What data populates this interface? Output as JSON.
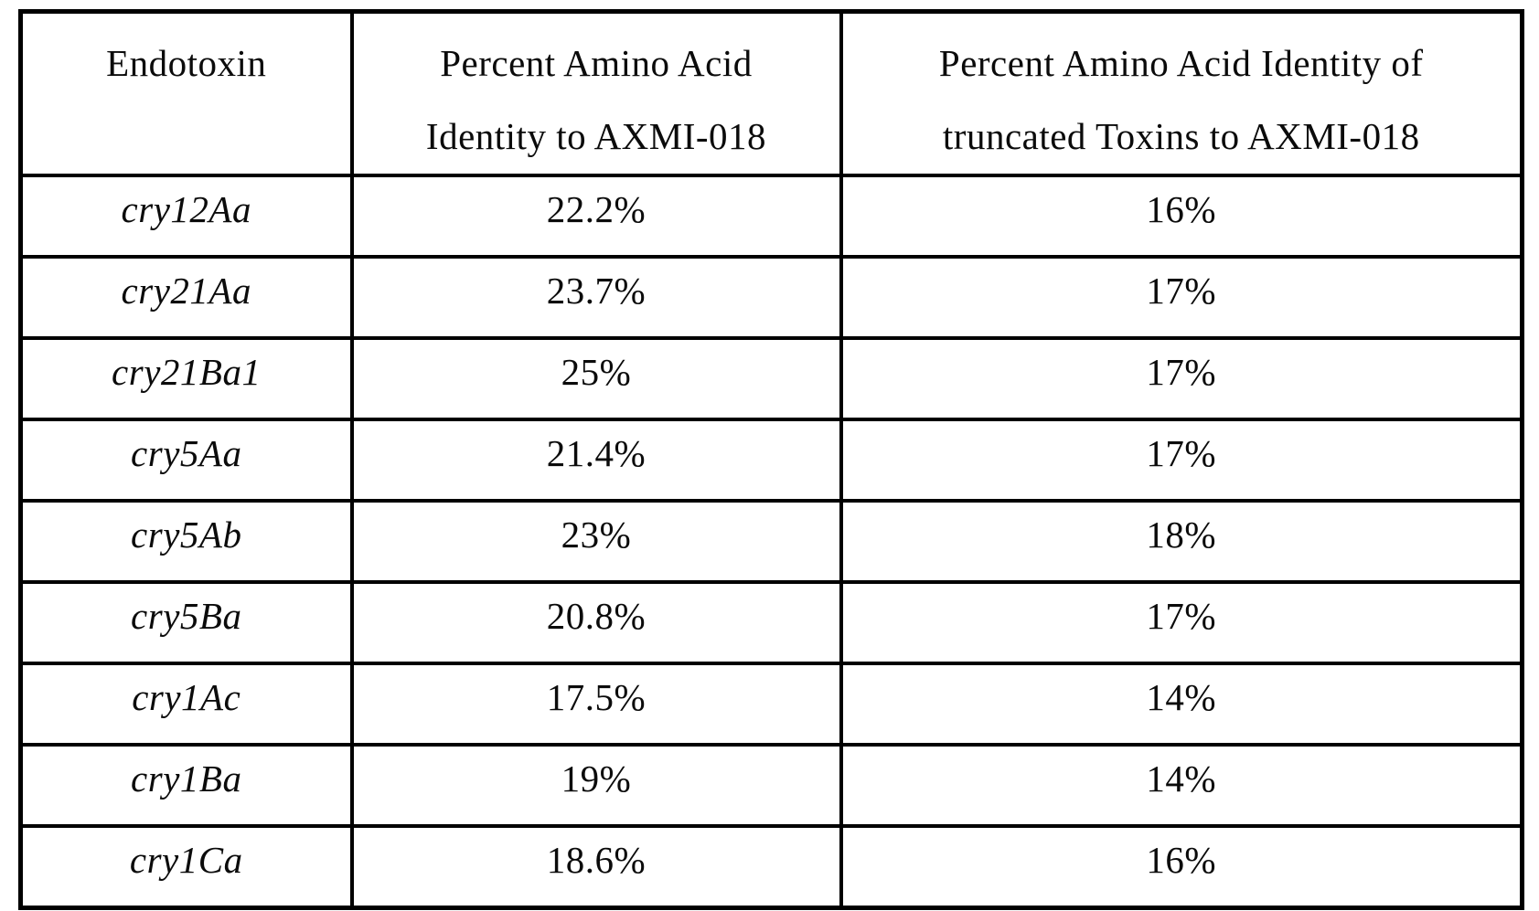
{
  "table": {
    "header": [
      {
        "lines": [
          "Endotoxin"
        ]
      },
      {
        "lines": [
          "Percent Amino Acid",
          "Identity to AXMI-018"
        ]
      },
      {
        "lines": [
          "Percent Amino Acid Identity of",
          "truncated Toxins to AXMI-018"
        ]
      }
    ],
    "rows": [
      {
        "endotoxin": "cry12Aa",
        "identity": "22.2%",
        "truncated_identity": "16%"
      },
      {
        "endotoxin": "cry21Aa",
        "identity": "23.7%",
        "truncated_identity": "17%"
      },
      {
        "endotoxin": "cry21Ba1",
        "identity": "25%",
        "truncated_identity": "17%"
      },
      {
        "endotoxin": "cry5Aa",
        "identity": "21.4%",
        "truncated_identity": "17%"
      },
      {
        "endotoxin": "cry5Ab",
        "identity": "23%",
        "truncated_identity": "18%"
      },
      {
        "endotoxin": "cry5Ba",
        "identity": "20.8%",
        "truncated_identity": "17%"
      },
      {
        "endotoxin": "cry1Ac",
        "identity": "17.5%",
        "truncated_identity": "14%"
      },
      {
        "endotoxin": "cry1Ba",
        "identity": "19%",
        "truncated_identity": "14%"
      },
      {
        "endotoxin": "cry1Ca",
        "identity": "18.6%",
        "truncated_identity": "16%"
      }
    ],
    "ink_color": "#0b0b0b",
    "border_color": "#000000"
  }
}
